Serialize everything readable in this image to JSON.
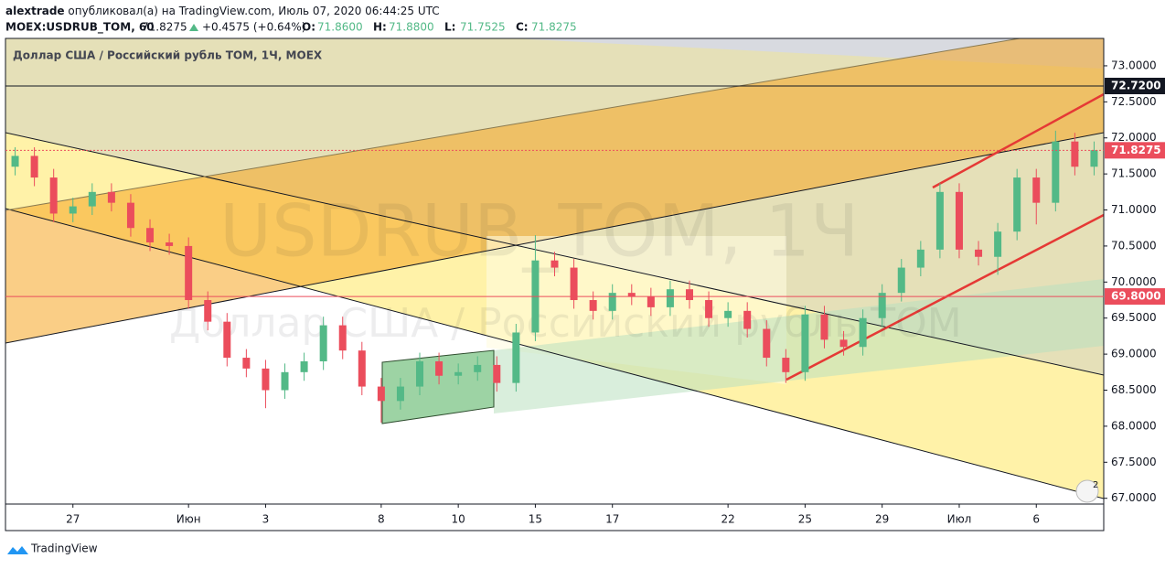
{
  "header": {
    "author": "alextrade",
    "published": "опубликовал(а) на TradingView.com, Июль 07, 2020 06:44:25 UTC"
  },
  "chart_data": {
    "type": "candlestick",
    "symbol": "MOEX:USDRUB_TOM, 60",
    "last": 71.8275,
    "change": "+0.4575 (+0.64%)",
    "ohlc_legend": [
      {
        "label": "O:",
        "value": "71.8600"
      },
      {
        "label": "H:",
        "value": "71.8800"
      },
      {
        "label": "L:",
        "value": "71.7525"
      },
      {
        "label": "C:",
        "value": "71.8275"
      }
    ],
    "title": "Доллар США / Российский рубль ТОМ, 1Ч, MOEX",
    "watermark": [
      "USDRUB_TOM, 1Ч",
      "Доллар США / Российский рубль ТОМ"
    ],
    "categories": [
      null,
      null,
      null,
      "27",
      null,
      null,
      null,
      null,
      null,
      "Июн",
      null,
      null,
      null,
      "3",
      null,
      null,
      null,
      null,
      null,
      "8",
      null,
      null,
      null,
      "10",
      null,
      null,
      null,
      "15",
      null,
      null,
      null,
      "17",
      null,
      null,
      null,
      null,
      null,
      "22",
      null,
      null,
      null,
      "25",
      null,
      null,
      null,
      "29",
      null,
      null,
      null,
      "Июл",
      null,
      null,
      null,
      "6",
      null,
      null,
      null
    ],
    "open": [
      71.6,
      71.75,
      71.45,
      70.95,
      71.05,
      71.25,
      71.1,
      70.75,
      70.55,
      70.5,
      69.75,
      69.45,
      68.95,
      68.8,
      68.5,
      68.75,
      68.9,
      69.4,
      69.05,
      68.55,
      68.35,
      68.55,
      68.9,
      68.7,
      68.75,
      68.85,
      68.6,
      69.3,
      70.3,
      70.2,
      69.75,
      69.6,
      69.85,
      69.8,
      69.65,
      69.9,
      69.75,
      69.5,
      69.6,
      69.35,
      68.95,
      68.75,
      69.55,
      69.2,
      69.1,
      69.5,
      69.85,
      70.2,
      70.45,
      71.25,
      70.45,
      70.35,
      70.7,
      71.45,
      71.1,
      71.95,
      71.6
    ],
    "high": [
      71.87,
      71.87,
      71.57,
      71.17,
      71.37,
      71.37,
      71.22,
      70.87,
      70.67,
      70.62,
      69.87,
      69.57,
      69.07,
      68.92,
      68.87,
      69.02,
      69.52,
      69.52,
      69.17,
      68.67,
      68.67,
      69.02,
      69.02,
      68.87,
      68.97,
      68.97,
      69.42,
      70.65,
      70.42,
      70.32,
      69.87,
      69.97,
      69.97,
      69.92,
      70.02,
      70.02,
      69.87,
      69.72,
      69.72,
      69.47,
      69.07,
      69.67,
      69.67,
      69.32,
      69.62,
      69.97,
      70.32,
      70.57,
      71.37,
      71.37,
      70.57,
      70.82,
      71.57,
      71.57,
      72.1,
      72.07,
      71.95
    ],
    "low": [
      71.48,
      71.33,
      70.83,
      70.83,
      70.93,
      70.98,
      70.63,
      70.43,
      70.38,
      69.63,
      69.33,
      68.83,
      68.68,
      68.25,
      68.38,
      68.63,
      68.78,
      68.93,
      68.43,
      68.05,
      68.23,
      68.43,
      68.58,
      68.58,
      68.63,
      68.48,
      68.48,
      69.18,
      70.08,
      69.63,
      69.48,
      69.48,
      69.68,
      69.53,
      69.53,
      69.63,
      69.38,
      69.38,
      69.23,
      68.83,
      68.6,
      68.63,
      69.08,
      68.98,
      68.98,
      69.38,
      69.73,
      70.08,
      70.33,
      70.33,
      70.23,
      70.1,
      70.58,
      70.8,
      70.98,
      71.48,
      71.48
    ],
    "close": [
      71.75,
      71.45,
      70.95,
      71.05,
      71.25,
      71.1,
      70.75,
      70.55,
      70.5,
      69.75,
      69.45,
      68.95,
      68.8,
      68.5,
      68.75,
      68.9,
      69.4,
      69.05,
      68.55,
      68.35,
      68.55,
      68.9,
      68.7,
      68.75,
      68.85,
      68.6,
      69.3,
      70.3,
      70.2,
      69.75,
      69.6,
      69.85,
      69.8,
      69.65,
      69.9,
      69.75,
      69.5,
      69.6,
      69.35,
      68.95,
      68.75,
      69.55,
      69.2,
      69.1,
      69.5,
      69.85,
      70.2,
      70.45,
      71.25,
      70.45,
      70.35,
      70.7,
      71.45,
      71.1,
      71.95,
      71.6,
      71.83
    ],
    "up_color": "#53b987",
    "down_color": "#eb4d5c",
    "ylim": [
      66.92,
      73.38
    ],
    "yticks": [
      {
        "value": 67,
        "label": "67.0000"
      },
      {
        "value": 67.5,
        "label": "67.5000"
      },
      {
        "value": 68,
        "label": "68.0000"
      },
      {
        "value": 68.5,
        "label": "68.5000"
      },
      {
        "value": 69,
        "label": "69.0000"
      },
      {
        "value": 69.5,
        "label": "69.5000"
      },
      {
        "value": 70,
        "label": "70.0000"
      },
      {
        "value": 70.5,
        "label": "70.5000"
      },
      {
        "value": 71,
        "label": "71.0000"
      },
      {
        "value": 71.5,
        "label": "71.5000"
      },
      {
        "value": 72,
        "label": "72.0000"
      },
      {
        "value": 72.5,
        "label": "72.5000"
      },
      {
        "value": 73,
        "label": "73.0000"
      }
    ],
    "price_lines": [
      {
        "value": 72.72,
        "label": "72.7200",
        "color": "#131722",
        "style": "solid"
      },
      {
        "value": 71.8275,
        "label": "71.8275",
        "color": "#eb4d5c",
        "style": "dotted"
      },
      {
        "value": 69.8,
        "label": "69.8000",
        "color": "#eb4d5c",
        "style": "solid"
      }
    ],
    "badge": "2"
  },
  "footer": {
    "brand": "TradingView"
  }
}
